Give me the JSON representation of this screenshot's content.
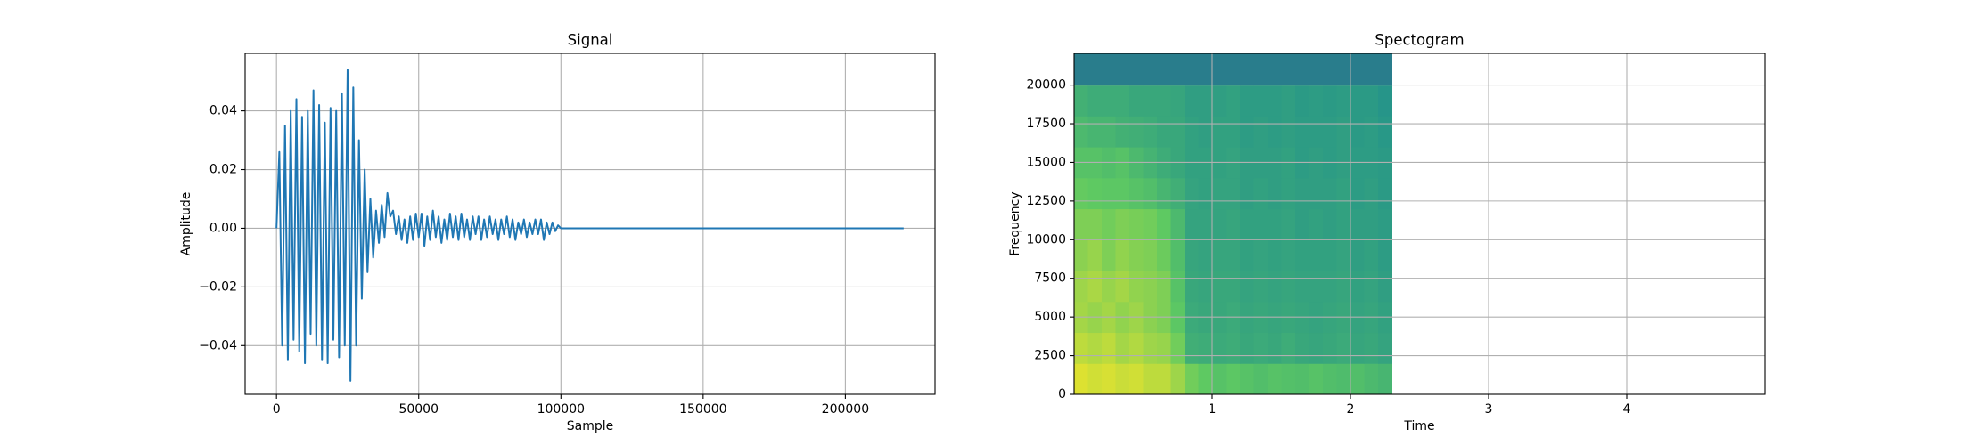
{
  "chart_data": [
    {
      "type": "line",
      "title": "Signal",
      "xlabel": "Sample",
      "ylabel": "Amplitude",
      "color": "#1f77b4",
      "grid": true,
      "xlim": [
        -11025,
        231525
      ],
      "xticks": [
        0,
        50000,
        100000,
        150000,
        200000
      ],
      "ylim": [
        -0.0566,
        0.0596
      ],
      "yticks": [
        {
          "value": -0.04,
          "label": "−0.04"
        },
        {
          "value": -0.02,
          "label": "−0.02"
        },
        {
          "value": 0,
          "label": "0.00"
        },
        0.02,
        0.04
      ],
      "x": [
        0,
        1000,
        2000,
        3000,
        4000,
        5000,
        6000,
        7000,
        8000,
        9000,
        10000,
        11000,
        12000,
        13000,
        14000,
        15000,
        16000,
        17000,
        18000,
        19000,
        20000,
        21000,
        22000,
        23000,
        24000,
        25000,
        26000,
        27000,
        28000,
        29000,
        30000,
        31000,
        32000,
        33000,
        34000,
        35000,
        36000,
        37000,
        38000,
        39000,
        40000,
        41000,
        42000,
        43000,
        44000,
        45000,
        46000,
        47000,
        48000,
        49000,
        50000,
        51000,
        52000,
        53000,
        54000,
        55000,
        56000,
        57000,
        58000,
        59000,
        60000,
        61000,
        62000,
        63000,
        64000,
        65000,
        66000,
        67000,
        68000,
        69000,
        70000,
        71000,
        72000,
        73000,
        74000,
        75000,
        76000,
        77000,
        78000,
        79000,
        80000,
        81000,
        82000,
        83000,
        84000,
        85000,
        86000,
        87000,
        88000,
        89000,
        90000,
        91000,
        92000,
        93000,
        94000,
        95000,
        96000,
        97000,
        98000,
        99000,
        100000,
        220500
      ],
      "values": [
        0.0,
        0.026,
        -0.04,
        0.035,
        -0.045,
        0.04,
        -0.038,
        0.044,
        -0.042,
        0.038,
        -0.046,
        0.04,
        -0.036,
        0.047,
        -0.04,
        0.042,
        -0.045,
        0.036,
        -0.046,
        0.041,
        -0.038,
        0.04,
        -0.044,
        0.046,
        -0.04,
        0.054,
        -0.052,
        0.048,
        -0.04,
        0.03,
        -0.024,
        0.02,
        -0.015,
        0.01,
        -0.01,
        0.006,
        -0.005,
        0.008,
        -0.003,
        0.012,
        0.004,
        0.006,
        -0.002,
        0.004,
        -0.004,
        0.003,
        -0.005,
        0.004,
        -0.004,
        0.005,
        -0.003,
        0.005,
        -0.006,
        0.004,
        -0.004,
        0.006,
        -0.003,
        0.004,
        -0.005,
        0.003,
        -0.004,
        0.005,
        -0.003,
        0.004,
        -0.004,
        0.005,
        -0.003,
        0.003,
        -0.004,
        0.004,
        -0.002,
        0.004,
        -0.004,
        0.003,
        -0.003,
        0.004,
        -0.002,
        0.003,
        -0.004,
        0.003,
        -0.002,
        0.004,
        -0.003,
        0.003,
        -0.004,
        0.002,
        -0.002,
        0.003,
        -0.003,
        0.002,
        -0.002,
        0.003,
        -0.002,
        0.003,
        -0.004,
        0.002,
        -0.002,
        0.002,
        -0.001,
        0.001,
        0.0,
        0.0
      ]
    },
    {
      "type": "heatmap",
      "title": "Spectogram",
      "xlabel": "Time",
      "ylabel": "Frequency",
      "colormap": "viridis",
      "grid": true,
      "xlim": [
        0,
        5.0
      ],
      "xticks": [
        1,
        2,
        3,
        4
      ],
      "ylim": [
        0,
        22050
      ],
      "yticks": [
        0,
        2500,
        5000,
        7500,
        10000,
        12500,
        15000,
        17500,
        20000
      ],
      "x_edges": [
        0,
        0.1,
        0.2,
        0.3,
        0.4,
        0.5,
        0.6,
        0.7,
        0.8,
        0.9,
        1.0,
        1.1,
        1.2,
        1.3,
        1.4,
        1.5,
        1.6,
        1.7,
        1.8,
        1.9,
        2.0,
        2.1,
        2.2,
        2.3
      ],
      "y_edges": [
        0,
        2000,
        4000,
        6000,
        8000,
        10000,
        12000,
        14000,
        16000,
        18000,
        20000,
        22050
      ],
      "z": [
        [
          0.95,
          0.93,
          0.94,
          0.92,
          0.93,
          0.9,
          0.9,
          0.85,
          0.78,
          0.75,
          0.72,
          0.74,
          0.72,
          0.7,
          0.72,
          0.71,
          0.7,
          0.72,
          0.7,
          0.69,
          0.7,
          0.68,
          0.66
        ],
        [
          0.9,
          0.88,
          0.9,
          0.86,
          0.88,
          0.85,
          0.84,
          0.78,
          0.63,
          0.62,
          0.61,
          0.62,
          0.6,
          0.61,
          0.6,
          0.62,
          0.6,
          0.59,
          0.6,
          0.61,
          0.59,
          0.6,
          0.58
        ],
        [
          0.86,
          0.84,
          0.86,
          0.83,
          0.85,
          0.82,
          0.8,
          0.74,
          0.61,
          0.6,
          0.6,
          0.61,
          0.59,
          0.6,
          0.59,
          0.6,
          0.59,
          0.58,
          0.59,
          0.6,
          0.58,
          0.59,
          0.57
        ],
        [
          0.85,
          0.87,
          0.84,
          0.86,
          0.83,
          0.82,
          0.8,
          0.72,
          0.6,
          0.59,
          0.6,
          0.6,
          0.58,
          0.59,
          0.58,
          0.59,
          0.58,
          0.58,
          0.58,
          0.59,
          0.57,
          0.58,
          0.56
        ],
        [
          0.82,
          0.84,
          0.8,
          0.83,
          0.81,
          0.8,
          0.77,
          0.7,
          0.59,
          0.58,
          0.59,
          0.59,
          0.57,
          0.58,
          0.57,
          0.58,
          0.57,
          0.57,
          0.57,
          0.58,
          0.56,
          0.57,
          0.55
        ],
        [
          0.8,
          0.8,
          0.78,
          0.8,
          0.79,
          0.78,
          0.75,
          0.68,
          0.58,
          0.58,
          0.58,
          0.59,
          0.57,
          0.57,
          0.57,
          0.58,
          0.56,
          0.57,
          0.56,
          0.57,
          0.56,
          0.56,
          0.55
        ],
        [
          0.76,
          0.75,
          0.74,
          0.74,
          0.72,
          0.7,
          0.66,
          0.63,
          0.58,
          0.57,
          0.58,
          0.58,
          0.56,
          0.57,
          0.56,
          0.57,
          0.56,
          0.56,
          0.56,
          0.57,
          0.55,
          0.56,
          0.54
        ],
        [
          0.72,
          0.72,
          0.7,
          0.72,
          0.68,
          0.65,
          0.62,
          0.6,
          0.57,
          0.57,
          0.57,
          0.58,
          0.56,
          0.56,
          0.56,
          0.57,
          0.55,
          0.56,
          0.55,
          0.56,
          0.55,
          0.55,
          0.54
        ],
        [
          0.68,
          0.66,
          0.66,
          0.64,
          0.63,
          0.62,
          0.6,
          0.6,
          0.57,
          0.56,
          0.57,
          0.57,
          0.55,
          0.56,
          0.55,
          0.56,
          0.55,
          0.55,
          0.55,
          0.56,
          0.54,
          0.55,
          0.53
        ],
        [
          0.64,
          0.62,
          0.62,
          0.62,
          0.6,
          0.6,
          0.6,
          0.59,
          0.56,
          0.56,
          0.56,
          0.57,
          0.55,
          0.55,
          0.55,
          0.56,
          0.54,
          0.55,
          0.54,
          0.55,
          0.54,
          0.54,
          0.52
        ],
        [
          0.42,
          0.42,
          0.42,
          0.42,
          0.42,
          0.42,
          0.42,
          0.42,
          0.42,
          0.42,
          0.42,
          0.42,
          0.42,
          0.42,
          0.42,
          0.42,
          0.42,
          0.42,
          0.42,
          0.42,
          0.42,
          0.42,
          0.42
        ]
      ]
    }
  ]
}
